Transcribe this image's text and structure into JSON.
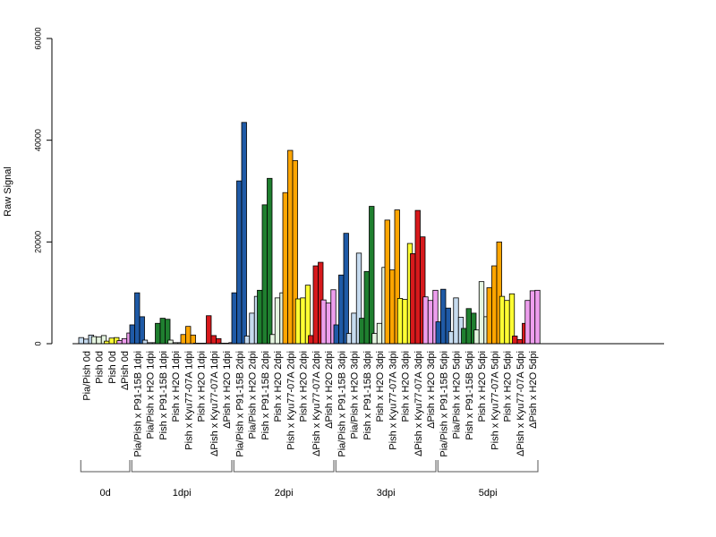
{
  "chart_data": {
    "type": "bar",
    "ylabel": "Raw Signal",
    "ylim": [
      0,
      60000
    ],
    "yticks": [
      0,
      20000,
      40000,
      60000
    ],
    "yticklabels": [
      "0",
      "20000",
      "40000",
      "60000"
    ],
    "grid": false,
    "legend": "none",
    "categories": [
      {
        "label": "Pia/Pish 0d",
        "color": "#c6dbef",
        "values": [
          1200,
          900,
          1700
        ]
      },
      {
        "label": "Pish 0d",
        "color": "#e5f5e0",
        "values": [
          1400,
          1300,
          1600
        ]
      },
      {
        "label": "Pish 0d",
        "color": "#ffff33",
        "values": [
          500,
          1100,
          1200
        ]
      },
      {
        "label": "ΔPish 0d",
        "color": "#ee9eee",
        "values": [
          600,
          1000,
          2100
        ]
      },
      {
        "label": "Pia/Pish x P91-15B 1dpi",
        "color": "#1f5aa6",
        "values": [
          3700,
          10000,
          5300
        ]
      },
      {
        "label": "Pia/Pish x H2O 1dpi",
        "color": "#c6dbef",
        "values": [
          700,
          200,
          200
        ]
      },
      {
        "label": "Pish x P91-15B 1dpi",
        "color": "#1f7f2f",
        "values": [
          4000,
          5000,
          4800
        ]
      },
      {
        "label": "Pish x H2O 1dpi",
        "color": "#e5f5e0",
        "values": [
          700,
          200,
          200
        ]
      },
      {
        "label": "Pish x Kyu77-07A 1dpi",
        "color": "#ffa500",
        "values": [
          1800,
          3400,
          1700
        ]
      },
      {
        "label": "Pish x H2O 1dpi",
        "color": "#ffff33",
        "values": [
          100,
          100,
          100
        ]
      },
      {
        "label": "ΔPish x Kyu77-07A 1dpi",
        "color": "#d7191c",
        "values": [
          5500,
          1600,
          1000
        ]
      },
      {
        "label": "ΔPish x H2O 1dpi",
        "color": "#ee9eee",
        "values": [
          100,
          100,
          200
        ]
      },
      {
        "label": "Pia/Pish x P91-15B 2dpi",
        "color": "#1f5aa6",
        "values": [
          10000,
          32000,
          43500
        ]
      },
      {
        "label": "Pia/Pish x H2O 2dpi",
        "color": "#c6dbef",
        "values": [
          1500,
          6000,
          9300
        ]
      },
      {
        "label": "Pish x P91-15B 2dpi",
        "color": "#1f7f2f",
        "values": [
          10500,
          27300,
          32500
        ]
      },
      {
        "label": "Pish x H2O 2dpi",
        "color": "#e5f5e0",
        "values": [
          1800,
          9000,
          10000
        ]
      },
      {
        "label": "Pish x Kyu77-07A 2dpi",
        "color": "#ffa500",
        "values": [
          29700,
          38000,
          36000
        ]
      },
      {
        "label": "Pish x H2O 2dpi",
        "color": "#ffff33",
        "values": [
          8800,
          9000,
          11500
        ]
      },
      {
        "label": "ΔPish x Kyu77-07A 2dpi",
        "color": "#d7191c",
        "values": [
          1600,
          15300,
          16000
        ]
      },
      {
        "label": "ΔPish x H2O 2dpi",
        "color": "#ee9eee",
        "values": [
          8600,
          8000,
          10600
        ]
      },
      {
        "label": "Pia/Pish x P91-15B 3dpi",
        "color": "#1f5aa6",
        "values": [
          3700,
          13500,
          21700
        ]
      },
      {
        "label": "Pia/Pish x H2O 3dpi",
        "color": "#c6dbef",
        "values": [
          2000,
          6000,
          17800
        ]
      },
      {
        "label": "Pish x P91-15B 3dpi",
        "color": "#1f7f2f",
        "values": [
          5000,
          14200,
          27000
        ]
      },
      {
        "label": "Pish x H2O 3dpi",
        "color": "#e5f5e0",
        "values": [
          2000,
          4000,
          15000
        ]
      },
      {
        "label": "Pish x Kyu77-07A 3dpi",
        "color": "#ffa500",
        "values": [
          24300,
          14500,
          26300
        ]
      },
      {
        "label": "Pish x H2O 3dpi",
        "color": "#ffff33",
        "values": [
          8900,
          8700,
          19700
        ]
      },
      {
        "label": "ΔPish x Kyu77-07A 3dpi",
        "color": "#d7191c",
        "values": [
          17700,
          26200,
          21000
        ]
      },
      {
        "label": "ΔPish x H2O 3dpi",
        "color": "#ee9eee",
        "values": [
          9200,
          8500,
          10500
        ]
      },
      {
        "label": "Pia/Pish x P91-15B 5dpi",
        "color": "#1f5aa6",
        "values": [
          4300,
          10700,
          7000
        ]
      },
      {
        "label": "Pia/Pish x H2O 5dpi",
        "color": "#c6dbef",
        "values": [
          2400,
          9000,
          5200
        ]
      },
      {
        "label": "Pish x P91-15B 5dpi",
        "color": "#1f7f2f",
        "values": [
          3000,
          6900,
          6000
        ]
      },
      {
        "label": "Pish x H2O 5dpi",
        "color": "#e5f5e0",
        "values": [
          2700,
          12200,
          5300
        ]
      },
      {
        "label": "Pish x Kyu77-07A 5dpi",
        "color": "#ffa500",
        "values": [
          11000,
          15300,
          20000
        ]
      },
      {
        "label": "Pish x H2O 5dpi",
        "color": "#ffff33",
        "values": [
          9300,
          8500,
          9800
        ]
      },
      {
        "label": "ΔPish x Kyu77-07A 5dpi",
        "color": "#d7191c",
        "values": [
          1500,
          800,
          4000
        ]
      },
      {
        "label": "ΔPish x H2O 5dpi",
        "color": "#ee9eee",
        "values": [
          8500,
          10400,
          10500
        ]
      }
    ],
    "groups": [
      {
        "label": "0d",
        "start": 0,
        "end": 3
      },
      {
        "label": "1dpi",
        "start": 4,
        "end": 11
      },
      {
        "label": "2dpi",
        "start": 12,
        "end": 19
      },
      {
        "label": "3dpi",
        "start": 20,
        "end": 27
      },
      {
        "label": "5dpi",
        "start": 28,
        "end": 35
      }
    ]
  }
}
